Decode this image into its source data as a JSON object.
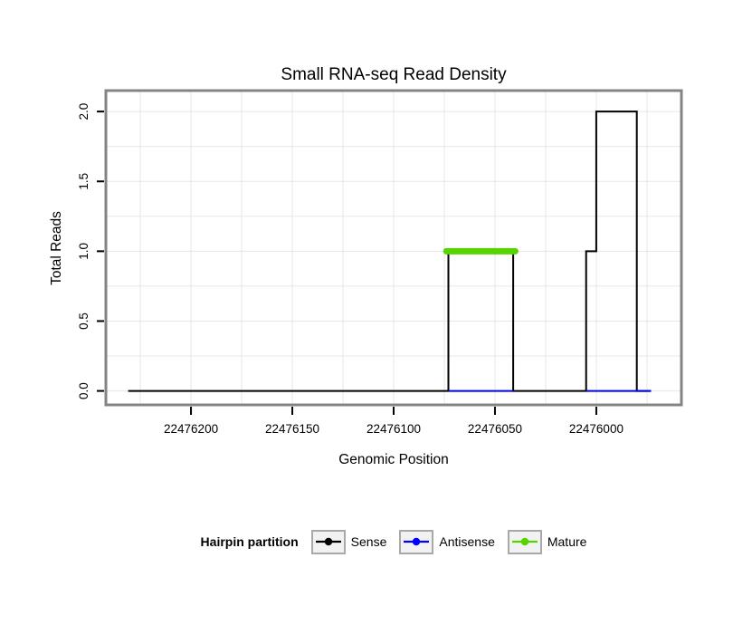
{
  "chart_data": {
    "type": "line",
    "title": "Small RNA-seq Read Density",
    "xlabel": "Genomic Position",
    "ylabel": "Total Reads",
    "x_axis_reversed": true,
    "x_domain": [
      22476242,
      22475958
    ],
    "y_domain": [
      -0.1,
      2.15
    ],
    "x_ticks": [
      {
        "value": 22476200,
        "label": "22476200"
      },
      {
        "value": 22476150,
        "label": "22476150"
      },
      {
        "value": 22476100,
        "label": "22476100"
      },
      {
        "value": 22476050,
        "label": "22476050"
      },
      {
        "value": 22476000,
        "label": "22476000"
      }
    ],
    "y_ticks": [
      {
        "value": 0.0,
        "label": "0.0"
      },
      {
        "value": 0.5,
        "label": "0.5"
      },
      {
        "value": 1.0,
        "label": "1.0"
      },
      {
        "value": 1.5,
        "label": "1.5"
      },
      {
        "value": 2.0,
        "label": "2.0"
      }
    ],
    "grid": {
      "color": "#e7e7e7",
      "x_start": 22476225,
      "x_end": 22475975,
      "x_step": 25,
      "y_start": 0,
      "y_end": 2.0,
      "y_step": 0.25
    },
    "panel": {
      "border_color": "#848484",
      "background": "#ffffff"
    },
    "series": [
      {
        "name": "Sense",
        "color": "#000000",
        "linewidth": 2,
        "points": [
          [
            22476231,
            0
          ],
          [
            22476073,
            0
          ],
          [
            22476073,
            1
          ],
          [
            22476041,
            1
          ],
          [
            22476041,
            0
          ],
          [
            22476005,
            0
          ],
          [
            22476005,
            1
          ],
          [
            22476000,
            1
          ],
          [
            22476000,
            2
          ],
          [
            22475980,
            2
          ],
          [
            22475980,
            0
          ],
          [
            22475973,
            0
          ]
        ]
      },
      {
        "name": "Antisense",
        "color": "#0000ff",
        "linewidth": 2,
        "y": 0,
        "segments": [
          [
            22476073,
            22476041
          ],
          [
            22476005,
            22475973
          ]
        ]
      },
      {
        "name": "Mature",
        "color": "#55d400",
        "linewidth": 7,
        "y": 1,
        "segments": [
          [
            22476074,
            22476040
          ]
        ]
      }
    ],
    "legend": {
      "title": "Hairpin partition",
      "entries": [
        {
          "label": "Sense",
          "color": "#000000"
        },
        {
          "label": "Antisense",
          "color": "#0000ff"
        },
        {
          "label": "Mature",
          "color": "#55d400"
        }
      ]
    }
  }
}
